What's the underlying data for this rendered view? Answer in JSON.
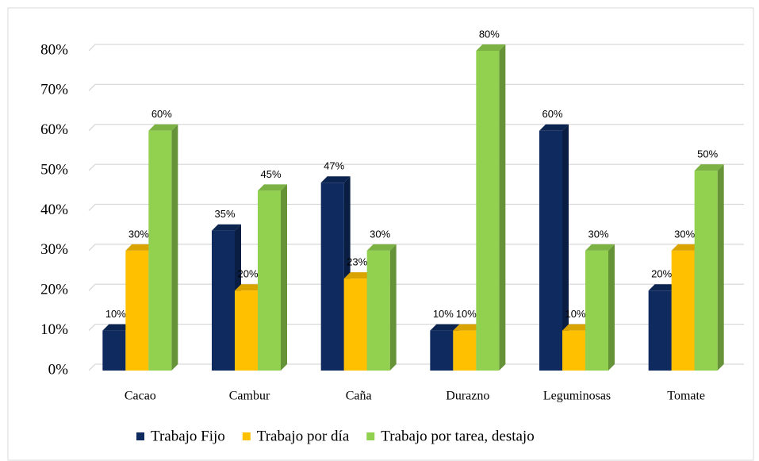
{
  "chart_data": {
    "type": "bar3d",
    "categories": [
      "Cacao",
      "Cambur",
      "Caña",
      "Durazno",
      "Leguminosas",
      "Tomate"
    ],
    "series": [
      {
        "name": "Trabajo Fijo",
        "color": "#0e2a5e",
        "values": [
          10,
          35,
          47,
          10,
          60,
          20
        ],
        "value_labels": [
          "10%",
          "35%",
          "47%",
          "10%",
          "60%",
          "20%"
        ]
      },
      {
        "name": "Trabajo por día",
        "color": "#ffc000",
        "values": [
          30,
          20,
          23,
          10,
          10,
          30
        ],
        "value_labels": [
          "30%",
          "20%",
          "23%",
          "10%",
          "10%",
          "30%"
        ]
      },
      {
        "name": "Trabajo por tarea, destajo",
        "color": "#92d050",
        "values": [
          60,
          45,
          30,
          80,
          30,
          50
        ],
        "value_labels": [
          "60%",
          "45%",
          "30%",
          "80%",
          "30%",
          "50%"
        ]
      }
    ],
    "ylim": [
      0,
      80
    ],
    "yticks": [
      {
        "value": 0,
        "label": "0%"
      },
      {
        "value": 10,
        "label": "10%"
      },
      {
        "value": 20,
        "label": "20%"
      },
      {
        "value": 30,
        "label": "30%"
      },
      {
        "value": 40,
        "label": "40%"
      },
      {
        "value": 50,
        "label": "50%"
      },
      {
        "value": 60,
        "label": "60%"
      },
      {
        "value": 70,
        "label": "70%"
      },
      {
        "value": 80,
        "label": "80%"
      }
    ],
    "grid": true,
    "legend": "bottom"
  }
}
